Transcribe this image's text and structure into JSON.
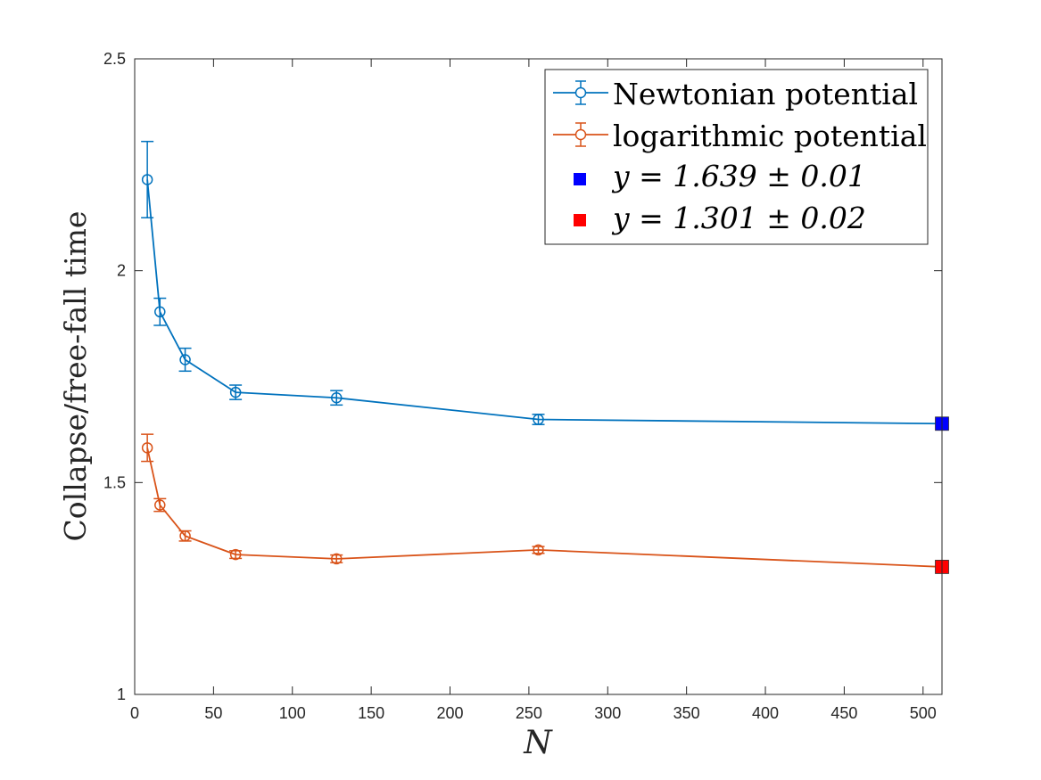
{
  "chart_data": {
    "type": "line",
    "title": "",
    "xlabel": "N",
    "ylabel": "Collapse/free-fall time",
    "xlim": [
      0,
      512
    ],
    "ylim": [
      1,
      2.5
    ],
    "xticks": [
      0,
      50,
      100,
      150,
      200,
      250,
      300,
      350,
      400,
      450,
      500
    ],
    "yticks": [
      1,
      1.5,
      2,
      2.5
    ],
    "xtick_labels": [
      "0",
      "50",
      "100",
      "150",
      "200",
      "250",
      "300",
      "350",
      "400",
      "450",
      "500"
    ],
    "ytick_labels": [
      "1",
      "1.5",
      "2",
      "2.5"
    ],
    "grid": false,
    "legend_position": "top-right",
    "series": [
      {
        "name": "Newtonian potential",
        "color": "#0072BD",
        "marker": "circle-open",
        "x": [
          8,
          16,
          32,
          64,
          128,
          256,
          512
        ],
        "y": [
          2.215,
          1.903,
          1.79,
          1.713,
          1.7,
          1.649,
          1.639
        ],
        "err": [
          0.09,
          0.032,
          0.027,
          0.017,
          0.017,
          0.012,
          0
        ]
      },
      {
        "name": "logarithmic potential",
        "color": "#D95319",
        "marker": "circle-open",
        "x": [
          8,
          16,
          32,
          64,
          128,
          256,
          512
        ],
        "y": [
          1.582,
          1.447,
          1.374,
          1.33,
          1.32,
          1.341,
          1.301
        ],
        "err": [
          0.032,
          0.015,
          0.012,
          0.009,
          0.009,
          0.008,
          0
        ]
      }
    ],
    "points": [
      {
        "name": "y = 1.639 ± 0.01",
        "label_eq": "y = 1.639 ± 0.01",
        "x": 512,
        "y": 1.639,
        "color": "#0000FF",
        "marker": "square"
      },
      {
        "name": "y = 1.301 ± 0.02",
        "label_eq": "y = 1.301 ± 0.02",
        "x": 512,
        "y": 1.301,
        "color": "#FF0000",
        "marker": "square"
      }
    ]
  }
}
